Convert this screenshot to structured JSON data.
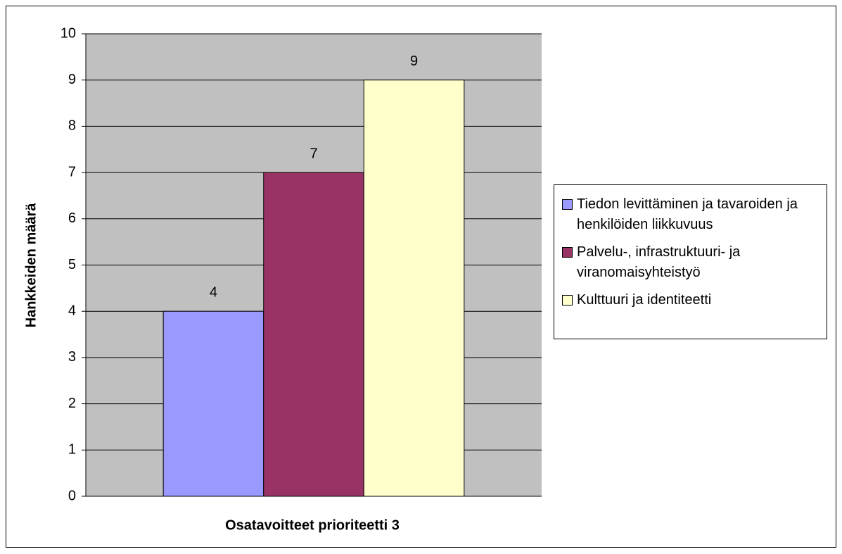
{
  "chart_data": {
    "type": "bar",
    "x_label": "Osatavoitteet prioriteetti 3",
    "y_label": "Hankkeiden määrä",
    "categories": [
      null
    ],
    "series": [
      {
        "name": "Tiedon levittäminen ja tavaroiden ja henkilöiden liikkuvuus",
        "color": "#9999ff",
        "values": [
          4
        ]
      },
      {
        "name": "Palvelu-, infrastruktuuri- ja viranomaisyhteistyö",
        "color": "#993366",
        "values": [
          7
        ]
      },
      {
        "name": "Kulttuuri ja identiteetti",
        "color": "#ffffcc",
        "values": [
          9
        ]
      }
    ],
    "ylim": [
      0,
      10
    ],
    "yticks": [
      0,
      1,
      2,
      3,
      4,
      5,
      6,
      7,
      8,
      9,
      10
    ],
    "grid": true,
    "plot_background": "#c0c0c0",
    "legend": "right"
  }
}
